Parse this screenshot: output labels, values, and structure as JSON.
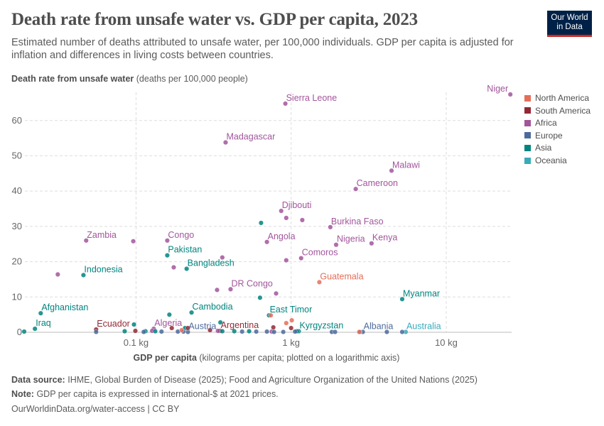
{
  "title": "Death rate from unsafe water vs. GDP per capita, 2023",
  "subtitle": "Estimated number of deaths attributed to unsafe water, per 100,000 individuals. GDP per capita is adjusted for inflation and differences in living costs between countries.",
  "logo": "Our World in Data",
  "footer": {
    "source_label": "Data source:",
    "source": "IHME, Global Burden of Disease (2025); Food and Agriculture Organization of the United Nations (2025)",
    "note_label": "Note:",
    "note": "GDP per capita is expressed in international-$ at 2021 prices.",
    "url": "OurWorldinData.org/water-access | CC BY"
  },
  "colors": {
    "North America": "#e56e5a",
    "South America": "#932834",
    "Africa": "#a2559c",
    "Europe": "#4c6a9c",
    "Asia": "#00847e",
    "Oceania": "#38aaba"
  },
  "chart_data": {
    "type": "scatter",
    "title": "Death rate from unsafe water vs. GDP per capita, 2023",
    "ylabel_bold": "Death rate from unsafe water",
    "ylabel_unit": "(deaths per 100,000 people)",
    "xlabel_bold": "GDP per capita",
    "xlabel_unit": "(kilograms per capita; plotted on a logarithmic axis)",
    "xscale": "log",
    "xlim": [
      0.0192,
      26.4
    ],
    "ylim": [
      0,
      68
    ],
    "xticks": [
      {
        "v": 0.1,
        "label": "0.1 kg"
      },
      {
        "v": 1,
        "label": "1 kg"
      },
      {
        "v": 10,
        "label": "10 kg"
      }
    ],
    "yticks": [
      0,
      10,
      20,
      30,
      40,
      50,
      60
    ],
    "grid": true,
    "legend_position": "right",
    "legend": [
      "North America",
      "South America",
      "Africa",
      "Europe",
      "Asia",
      "Oceania"
    ],
    "points": [
      {
        "name": "Niger",
        "region": "Africa",
        "x": 25.9,
        "y": 67.4
      },
      {
        "name": "Sierra Leone",
        "region": "Africa",
        "x": 0.918,
        "y": 64.8
      },
      {
        "name": "Madagascar",
        "region": "Africa",
        "x": 0.378,
        "y": 53.8
      },
      {
        "name": "Malawi",
        "region": "Africa",
        "x": 4.44,
        "y": 45.8
      },
      {
        "name": "Cameroon",
        "region": "Africa",
        "x": 2.61,
        "y": 40.6
      },
      {
        "name": "Djibouti",
        "region": "Africa",
        "x": 0.863,
        "y": 34.4
      },
      {
        "name": "Burkina Faso",
        "region": "Africa",
        "x": 1.79,
        "y": 29.8
      },
      {
        "name": "Zambia",
        "region": "Africa",
        "x": 0.0477,
        "y": 26
      },
      {
        "name": "Congo",
        "region": "Africa",
        "x": 0.159,
        "y": 26
      },
      {
        "name": "Angola",
        "region": "Africa",
        "x": 0.698,
        "y": 25.6
      },
      {
        "name": "Nigeria",
        "region": "Africa",
        "x": 1.95,
        "y": 24.8
      },
      {
        "name": "Kenya",
        "region": "Africa",
        "x": 3.3,
        "y": 25.2
      },
      {
        "name": "Comoros",
        "region": "Africa",
        "x": 1.16,
        "y": 21
      },
      {
        "name": "Pakistan",
        "region": "Asia",
        "x": 0.159,
        "y": 21.8
      },
      {
        "name": "Bangladesh",
        "region": "Asia",
        "x": 0.212,
        "y": 18
      },
      {
        "name": "Indonesia",
        "region": "Asia",
        "x": 0.0458,
        "y": 16.2
      },
      {
        "name": "DR Congo",
        "region": "Africa",
        "x": 0.407,
        "y": 12.2
      },
      {
        "name": "Guatemala",
        "region": "North America",
        "x": 1.52,
        "y": 14.2
      },
      {
        "name": "Myanmar",
        "region": "Asia",
        "x": 5.2,
        "y": 9.4
      },
      {
        "name": "Afghanistan",
        "region": "Asia",
        "x": 0.0243,
        "y": 5.4
      },
      {
        "name": "Cambodia",
        "region": "Asia",
        "x": 0.228,
        "y": 5.6
      },
      {
        "name": "East Timor",
        "region": "Asia",
        "x": 0.72,
        "y": 4.8
      },
      {
        "name": "Iraq",
        "region": "Asia",
        "x": 0.0223,
        "y": 1
      },
      {
        "name": "Ecuador",
        "region": "South America",
        "x": 0.0553,
        "y": 0.8
      },
      {
        "name": "Algeria",
        "region": "Africa",
        "x": 0.13,
        "y": 1
      },
      {
        "name": "Austria",
        "region": "Europe",
        "x": 0.216,
        "y": 0.1
      },
      {
        "name": "Argentina",
        "region": "South America",
        "x": 0.348,
        "y": 0.4
      },
      {
        "name": "Kyrgyzstan",
        "region": "Asia",
        "x": 1.12,
        "y": 0.3
      },
      {
        "name": "Albania",
        "region": "Europe",
        "x": 2.9,
        "y": 0.1
      },
      {
        "name": "Australia",
        "region": "Oceania",
        "x": 5.48,
        "y": 0.1
      },
      {
        "region": "Africa",
        "x": 0.0313,
        "y": 16.4
      },
      {
        "region": "Africa",
        "x": 0.096,
        "y": 25.8
      },
      {
        "region": "Africa",
        "x": 0.175,
        "y": 18.4
      },
      {
        "region": "Africa",
        "x": 0.36,
        "y": 21.2
      },
      {
        "region": "Africa",
        "x": 0.333,
        "y": 12
      },
      {
        "region": "Africa",
        "x": 0.8,
        "y": 11
      },
      {
        "region": "Africa",
        "x": 0.93,
        "y": 20.4
      },
      {
        "region": "Africa",
        "x": 0.93,
        "y": 32.4
      },
      {
        "region": "Africa",
        "x": 1.18,
        "y": 31.8
      },
      {
        "region": "Africa",
        "x": 0.75,
        "y": 0.2
      },
      {
        "region": "Africa",
        "x": 0.337,
        "y": 0.4
      },
      {
        "region": "Africa",
        "x": 0.127,
        "y": 0.4
      },
      {
        "region": "Asia",
        "x": 0.64,
        "y": 31
      },
      {
        "region": "Asia",
        "x": 0.097,
        "y": 2.2
      },
      {
        "region": "Asia",
        "x": 0.164,
        "y": 5
      },
      {
        "region": "Asia",
        "x": 0.63,
        "y": 9.8
      },
      {
        "region": "Asia",
        "x": 0.35,
        "y": 2.8
      },
      {
        "region": "Asia",
        "x": 0.019,
        "y": 0.2
      },
      {
        "region": "Asia",
        "x": 0.207,
        "y": 1.2
      },
      {
        "region": "Asia",
        "x": 0.0845,
        "y": 0.3
      },
      {
        "region": "Asia",
        "x": 0.115,
        "y": 0.3
      },
      {
        "region": "Asia",
        "x": 0.133,
        "y": 0.3
      },
      {
        "region": "Asia",
        "x": 0.36,
        "y": 0.3
      },
      {
        "region": "Asia",
        "x": 0.43,
        "y": 0.3
      },
      {
        "region": "Asia",
        "x": 0.536,
        "y": 0.3
      },
      {
        "region": "Asia",
        "x": 1.09,
        "y": 0.3
      },
      {
        "region": "Europe",
        "x": 0.0553,
        "y": 0.1
      },
      {
        "region": "Europe",
        "x": 0.112,
        "y": 0.1
      },
      {
        "region": "Europe",
        "x": 0.146,
        "y": 0.2
      },
      {
        "region": "Europe",
        "x": 0.186,
        "y": 0.2
      },
      {
        "region": "Europe",
        "x": 0.202,
        "y": 0.2
      },
      {
        "region": "Europe",
        "x": 0.483,
        "y": 0.2
      },
      {
        "region": "Europe",
        "x": 0.596,
        "y": 0.2
      },
      {
        "region": "Europe",
        "x": 0.698,
        "y": 0.2
      },
      {
        "region": "Europe",
        "x": 0.776,
        "y": 0.1
      },
      {
        "region": "Europe",
        "x": 0.89,
        "y": 0.1
      },
      {
        "region": "Europe",
        "x": 1.06,
        "y": 0.2
      },
      {
        "region": "Europe",
        "x": 1.83,
        "y": 0.1
      },
      {
        "region": "Europe",
        "x": 1.92,
        "y": 0.1
      },
      {
        "region": "Europe",
        "x": 2.78,
        "y": 0.1
      },
      {
        "region": "Europe",
        "x": 4.14,
        "y": 0.1
      },
      {
        "region": "Europe",
        "x": 5.2,
        "y": 0.1
      },
      {
        "region": "South America",
        "x": 0.099,
        "y": 0.4
      },
      {
        "region": "South America",
        "x": 0.17,
        "y": 1.2
      },
      {
        "region": "South America",
        "x": 0.216,
        "y": 1.2
      },
      {
        "region": "South America",
        "x": 0.768,
        "y": 1.4
      },
      {
        "region": "South America",
        "x": 1.0,
        "y": 1.2
      },
      {
        "region": "South America",
        "x": 0.3,
        "y": 0.6
      },
      {
        "region": "North America",
        "x": 0.93,
        "y": 2.6
      },
      {
        "region": "North America",
        "x": 1.01,
        "y": 3.4
      },
      {
        "region": "North America",
        "x": 0.74,
        "y": 4.8
      },
      {
        "region": "North America",
        "x": 0.197,
        "y": 0.6
      },
      {
        "region": "North America",
        "x": 2.75,
        "y": 0.1
      }
    ]
  }
}
